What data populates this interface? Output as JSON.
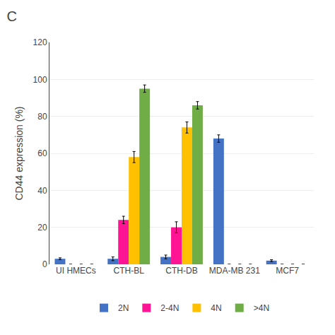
{
  "chart_data": {
    "type": "bar",
    "title": "C",
    "categories": [
      "UI HMECs",
      "CTH-BL",
      "CTH-DB",
      "MDA-MB 231",
      "MCF7"
    ],
    "series": [
      {
        "name": "2N",
        "color": "#4472C4",
        "values": [
          3,
          3,
          4,
          68,
          2
        ],
        "errors": [
          0.5,
          1,
          1,
          2,
          0.5
        ]
      },
      {
        "name": "2-4N",
        "color": "#FF1493",
        "values": [
          0,
          24,
          20,
          0,
          0
        ],
        "errors": [
          0,
          2,
          3,
          0,
          0
        ]
      },
      {
        "name": "4N",
        "color": "#FFC000",
        "values": [
          0,
          58,
          74,
          0,
          0
        ],
        "errors": [
          0,
          3,
          3,
          0,
          0
        ]
      },
      {
        "name": ">4N",
        "color": "#70AD47",
        "values": [
          0,
          95,
          86,
          0,
          0
        ],
        "errors": [
          0,
          2,
          2,
          0,
          0
        ]
      }
    ],
    "ylabel": "CD44 expression (%)",
    "ylim": [
      0,
      120
    ],
    "yticks": [
      0,
      20,
      40,
      60,
      80,
      100,
      120
    ],
    "grid": true,
    "legend": "bottom"
  }
}
